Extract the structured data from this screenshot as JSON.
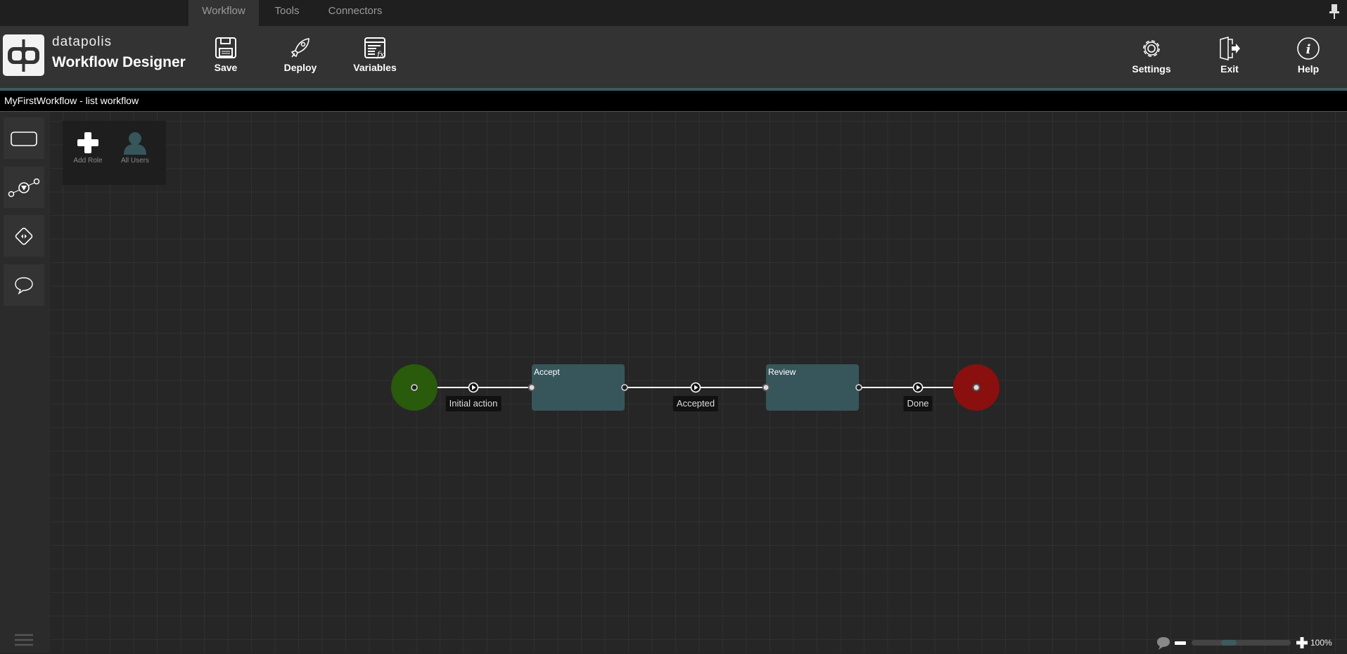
{
  "tabs": [
    {
      "label": "Workflow",
      "active": true
    },
    {
      "label": "Tools"
    },
    {
      "label": "Connectors"
    }
  ],
  "header": {
    "brand": "datapolis",
    "app_title": "Workflow Designer",
    "save": "Save",
    "deploy": "Deploy",
    "variables": "Variables",
    "settings": "Settings",
    "exit": "Exit",
    "help": "Help"
  },
  "title": "MyFirstWorkflow - list workflow",
  "roles": {
    "add_role": "Add Role",
    "all_users": "All Users"
  },
  "workflow": {
    "states": [
      "Accept",
      "Review"
    ],
    "transitions": [
      "Initial action",
      "Accepted",
      "Done"
    ],
    "colors": {
      "start": "#2a5a0c",
      "end": "#8a0f0f",
      "state": "#37565b"
    }
  },
  "zoom": {
    "level": "100%",
    "slider_fraction": 0.35
  }
}
